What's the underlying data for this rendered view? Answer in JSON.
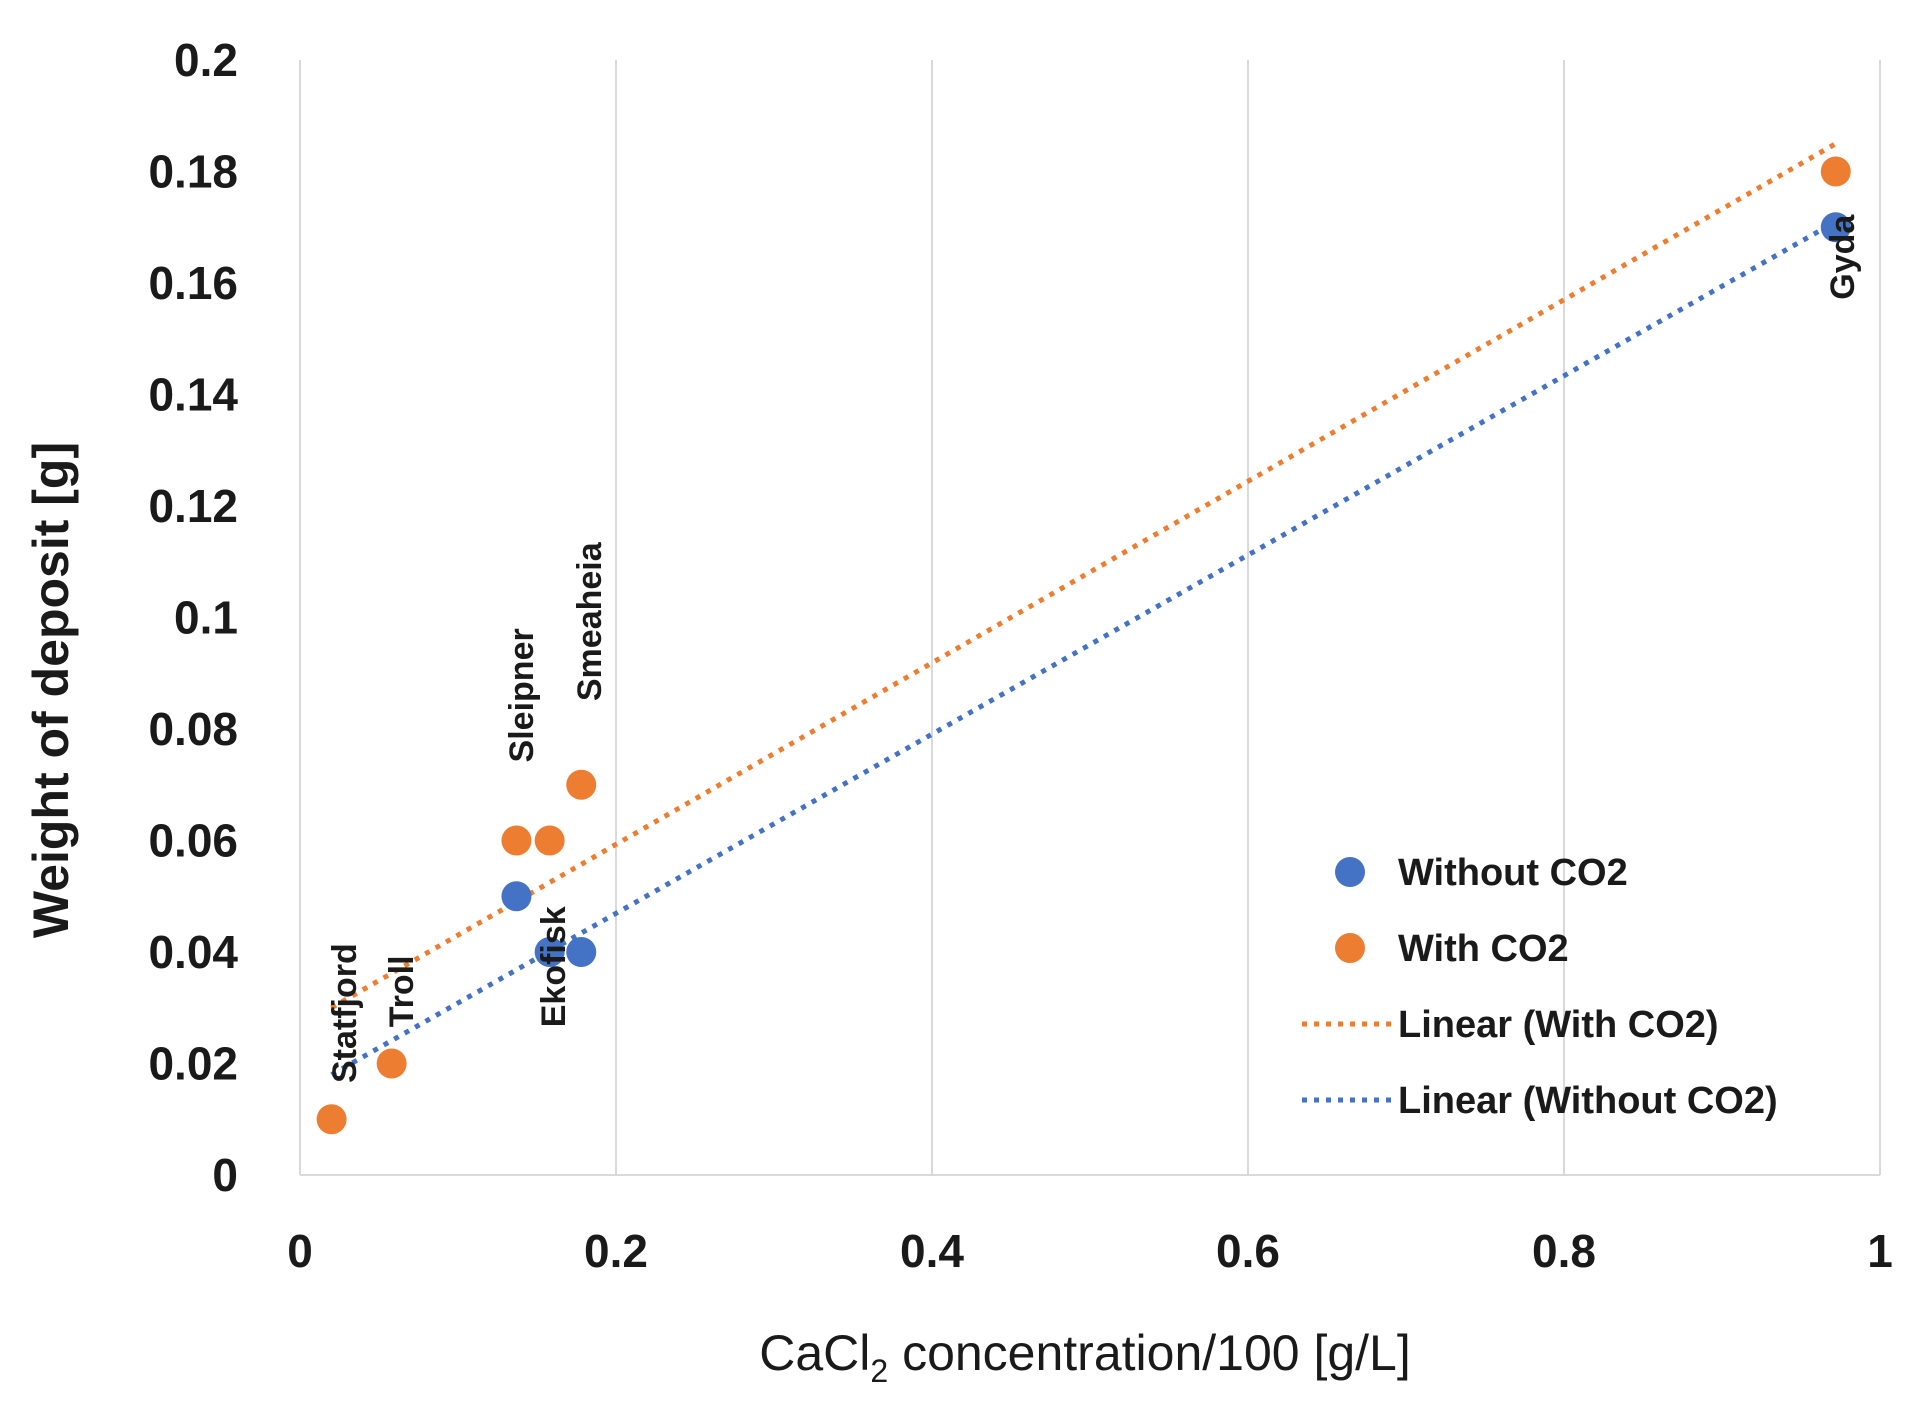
{
  "chart_data": {
    "type": "scatter",
    "xlabel_prefix": "CaCl",
    "xlabel_sub": "2",
    "xlabel_suffix": " concentration/100 [g/L]",
    "ylabel": "Weight of deposit [g]",
    "xlim": [
      0,
      1
    ],
    "ylim": [
      0,
      0.2
    ],
    "x_ticks": [
      0,
      0.2,
      0.4,
      0.6,
      0.8,
      1
    ],
    "x_tick_labels": [
      "0",
      "0.2",
      "0.4",
      "0.6",
      "0.8",
      "1"
    ],
    "y_ticks": [
      0,
      0.02,
      0.04,
      0.06,
      0.08,
      0.1,
      0.12,
      0.14,
      0.16,
      0.18,
      0.2
    ],
    "y_tick_labels": [
      "0",
      "0.02",
      "0.04",
      "0.06",
      "0.08",
      "0.1",
      "0.12",
      "0.14",
      "0.16",
      "0.18",
      "0.2"
    ],
    "vertical_gridlines": true,
    "series": [
      {
        "name": "Without CO2",
        "color": "#4472c4",
        "points": [
          {
            "x": 0.137,
            "y": 0.05
          },
          {
            "x": 0.158,
            "y": 0.04
          },
          {
            "x": 0.178,
            "y": 0.04
          },
          {
            "x": 0.972,
            "y": 0.17
          }
        ]
      },
      {
        "name": "With CO2",
        "color": "#ed7d31",
        "points": [
          {
            "x": 0.02,
            "y": 0.01
          },
          {
            "x": 0.058,
            "y": 0.02
          },
          {
            "x": 0.137,
            "y": 0.06
          },
          {
            "x": 0.158,
            "y": 0.06
          },
          {
            "x": 0.178,
            "y": 0.07
          },
          {
            "x": 0.972,
            "y": 0.18
          }
        ]
      }
    ],
    "trendlines": [
      {
        "name": "Linear (With CO2)",
        "color": "#ed7d31",
        "from": [
          0.02,
          0.03
        ],
        "to": [
          0.972,
          0.185
        ]
      },
      {
        "name": "Linear (Without CO2)",
        "color": "#4472c4",
        "from": [
          0.02,
          0.018
        ],
        "to": [
          0.972,
          0.171
        ]
      }
    ],
    "annotations": [
      {
        "text": "Statfjord",
        "x": 0.028,
        "y": 0.0165
      },
      {
        "text": "Troll",
        "x": 0.064,
        "y": 0.0265
      },
      {
        "text": "Sleipner",
        "x": 0.14,
        "y": 0.074
      },
      {
        "text": "Ekofisk",
        "x": 0.16,
        "y": 0.0265
      },
      {
        "text": "Smeaheia",
        "x": 0.183,
        "y": 0.085
      },
      {
        "text": "Gyda",
        "x": 0.976,
        "y": 0.157
      }
    ],
    "legend": {
      "position": "right",
      "entries": [
        {
          "label": "Without CO2",
          "kind": "marker",
          "color": "#4472c4"
        },
        {
          "label": "With CO2",
          "kind": "marker",
          "color": "#ed7d31"
        },
        {
          "label": "Linear (With CO2)",
          "kind": "dotted-line",
          "color": "#ed7d31"
        },
        {
          "label": "Linear (Without CO2)",
          "kind": "dotted-line",
          "color": "#4472c4"
        }
      ]
    }
  }
}
